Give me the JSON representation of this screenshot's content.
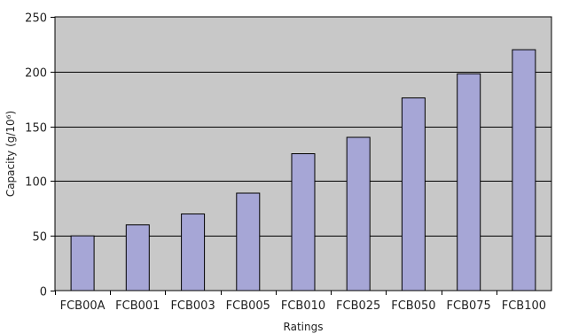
{
  "chart_data": {
    "type": "bar",
    "title": "",
    "xlabel": "Ratings",
    "ylabel": "Capacity (g/10⁶)",
    "categories": [
      "FCB00A",
      "FCB001",
      "FCB003",
      "FCB005",
      "FCB010",
      "FCB025",
      "FCB050",
      "FCB075",
      "FCB100"
    ],
    "values": [
      50,
      60,
      70,
      89,
      125,
      140,
      176,
      198,
      220
    ],
    "ylim": [
      0,
      250
    ],
    "yticks": [
      0,
      50,
      100,
      150,
      200,
      250
    ],
    "grid": true,
    "legend": "none",
    "colors": {
      "plot_bg": "#c8c8c8",
      "bar": "#a6a6d6",
      "bar_edge": "#000000",
      "grid": "#000000"
    }
  }
}
